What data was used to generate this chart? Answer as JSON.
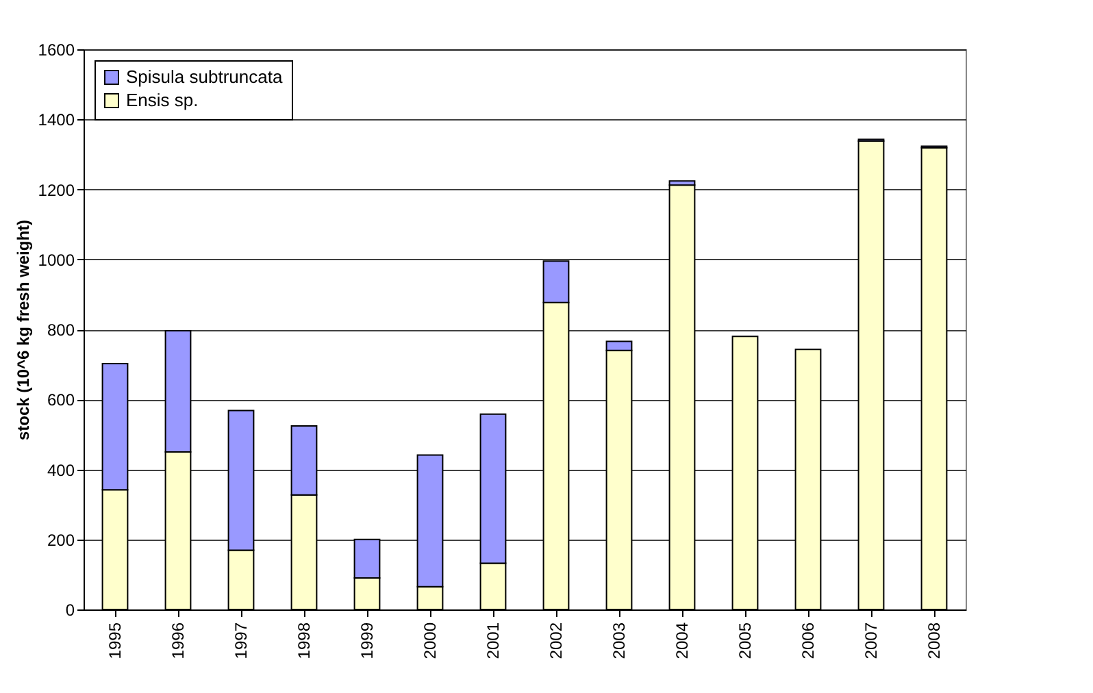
{
  "chart_data": {
    "type": "bar",
    "stacked": true,
    "ylabel": "stock (10^6  kg fresh weight)",
    "categories": [
      "1995",
      "1996",
      "1997",
      "1998",
      "1999",
      "2000",
      "2001",
      "2002",
      "2003",
      "2004",
      "2005",
      "2006",
      "2007",
      "2008"
    ],
    "series": [
      {
        "name": "Ensis sp.",
        "color": "#ffffcc",
        "values": [
          342,
          450,
          169,
          327,
          90,
          65,
          132,
          877,
          740,
          1212,
          780,
          743,
          1338,
          1319
        ]
      },
      {
        "name": "Spisula subtruncata",
        "color": "#9999ff",
        "values": [
          360,
          346,
          399,
          197,
          110,
          376,
          426,
          118,
          26,
          12,
          null,
          null,
          5,
          4
        ]
      }
    ],
    "ylim": [
      0,
      1600
    ],
    "yticks": [
      0,
      200,
      400,
      600,
      800,
      1000,
      1200,
      1400,
      1600
    ],
    "grid": "y",
    "legend": "top left"
  }
}
